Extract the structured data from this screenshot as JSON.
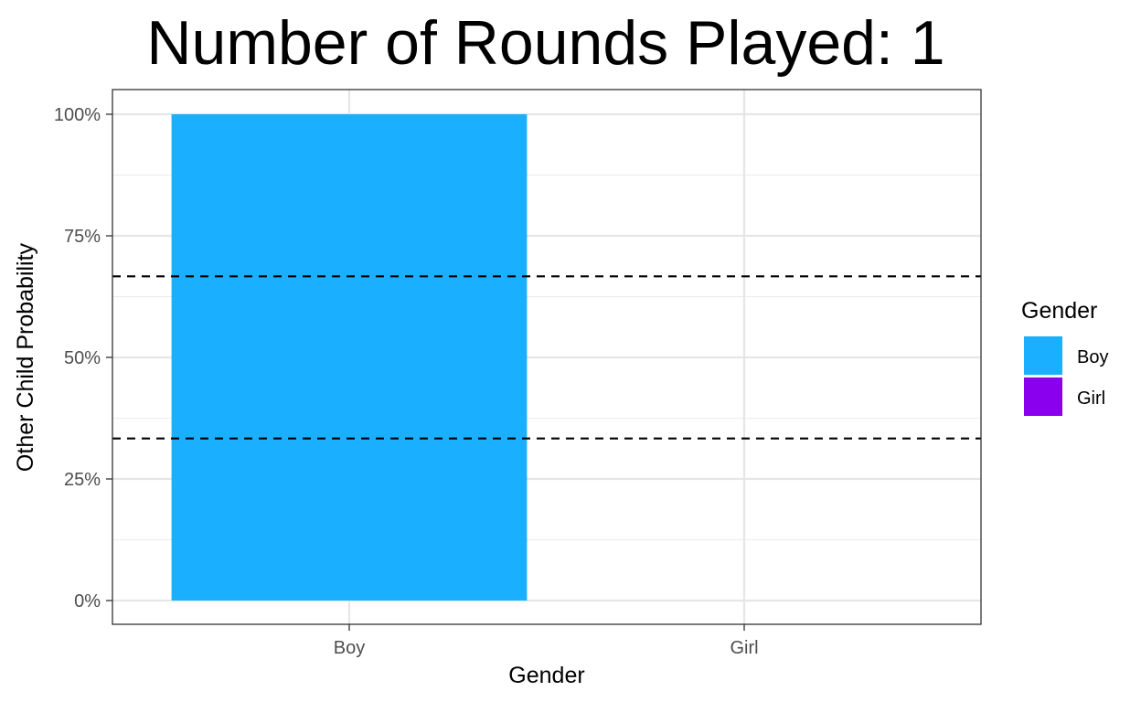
{
  "chart_data": {
    "type": "bar",
    "title": "Number of Rounds Played: 1",
    "xlabel": "Gender",
    "ylabel": "Other Child Probability",
    "categories": [
      "Boy",
      "Girl"
    ],
    "values": [
      1.0,
      0.0
    ],
    "ylim": [
      0,
      1
    ],
    "yticks": [
      0,
      0.25,
      0.5,
      0.75,
      1.0
    ],
    "ytick_labels": [
      "0%",
      "25%",
      "50%",
      "75%",
      "100%"
    ],
    "reference_lines": [
      0.6667,
      0.3333
    ],
    "reference_line_style": "dashed",
    "grid": true,
    "legend": {
      "title": "Gender",
      "position": "right",
      "entries": [
        {
          "label": "Boy",
          "color": "#1AB0FF"
        },
        {
          "label": "Girl",
          "color": "#8A00EE"
        }
      ]
    },
    "colors": {
      "Boy": "#1AB0FF",
      "Girl": "#8A00EE"
    }
  }
}
